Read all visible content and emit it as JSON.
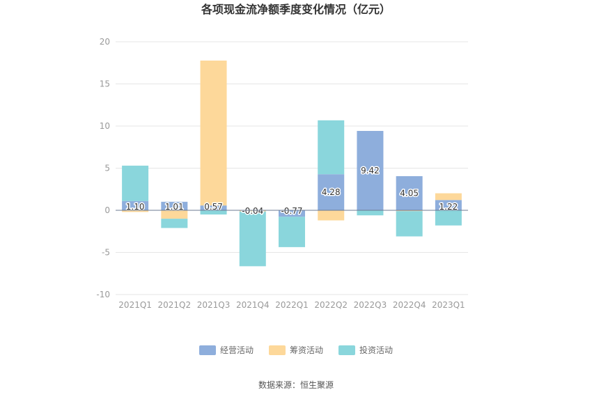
{
  "chart_data": {
    "type": "bar",
    "stacked": true,
    "title": "各项现金流净额季度变化情况（亿元）",
    "categories": [
      "2021Q1",
      "2021Q2",
      "2021Q3",
      "2021Q4",
      "2022Q1",
      "2022Q2",
      "2022Q3",
      "2022Q4",
      "2023Q1"
    ],
    "series": [
      {
        "name": "经营活动",
        "color": "#8eaedc",
        "values": [
          1.1,
          1.01,
          0.57,
          -0.04,
          -0.77,
          4.28,
          9.42,
          4.05,
          1.22
        ],
        "labels": [
          "1.10",
          "1.01",
          "0.57",
          "-0.04",
          "-0.77",
          "4.28",
          "9.42",
          "4.05",
          "1.22"
        ]
      },
      {
        "name": "筹资活动",
        "color": "#fdd89a",
        "values": [
          -0.2,
          -1.0,
          17.2,
          -0.1,
          0,
          -1.2,
          0,
          -0.1,
          0.8
        ]
      },
      {
        "name": "投资活动",
        "color": "#8ad6dc",
        "values": [
          4.2,
          -1.1,
          -0.5,
          -6.5,
          -3.6,
          6.4,
          -0.6,
          -3.0,
          -1.8
        ]
      }
    ],
    "yaxis": {
      "min": -10,
      "max": 20,
      "ticks": [
        20,
        15,
        10,
        5,
        0,
        -5,
        -10
      ]
    },
    "grid": true,
    "legend_position": "bottom"
  },
  "footer": {
    "source": "数据来源：恒生聚源"
  }
}
